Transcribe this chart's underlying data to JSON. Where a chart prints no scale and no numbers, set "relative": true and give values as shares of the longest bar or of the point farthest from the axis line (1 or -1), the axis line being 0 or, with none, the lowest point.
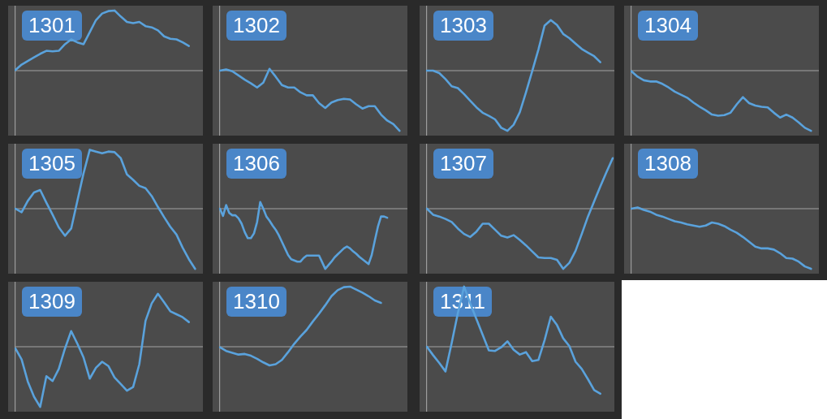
{
  "chart_data": [
    {
      "type": "line",
      "title": "1301",
      "relative": true,
      "marker": "none",
      "categories": [
        null,
        null,
        null,
        null,
        null,
        null,
        null,
        null,
        null,
        null,
        null,
        null,
        null,
        null,
        null,
        null,
        null,
        null,
        null,
        null,
        null,
        null,
        null,
        null,
        null,
        null,
        null,
        null,
        null,
        null,
        null
      ],
      "color": "#5aa2dc",
      "values": [
        0.01,
        0.1,
        0.16,
        0.22,
        0.28,
        0.33,
        0.32,
        0.33,
        0.44,
        0.52,
        0.47,
        0.44,
        0.64,
        0.84,
        0.95,
        0.99,
        1,
        0.9,
        0.81,
        0.79,
        0.81,
        0.74,
        0.72,
        0.67,
        0.57,
        0.53,
        0.52,
        0.47,
        0.41,
        null,
        null
      ],
      "ref_lines": [
        {
          "axis": "y",
          "value": 0,
          "color": "#a3a3a3"
        }
      ]
    },
    {
      "type": "line",
      "title": "1302",
      "relative": true,
      "marker": "none",
      "categories": [
        null,
        null,
        null,
        null,
        null,
        null,
        null,
        null,
        null,
        null,
        null,
        null,
        null,
        null,
        null,
        null,
        null,
        null,
        null,
        null,
        null,
        null,
        null,
        null,
        null,
        null,
        null,
        null,
        null,
        null,
        null
      ],
      "color": "#5aa2dc",
      "values": [
        0,
        0.02,
        -0.01,
        -0.08,
        -0.15,
        -0.21,
        -0.28,
        -0.2,
        0.03,
        -0.1,
        -0.24,
        -0.28,
        -0.28,
        -0.36,
        -0.41,
        -0.41,
        -0.54,
        -0.62,
        -0.53,
        -0.49,
        -0.47,
        -0.48,
        -0.56,
        -0.63,
        -0.59,
        -0.59,
        -0.73,
        -0.83,
        -0.89,
        -1,
        null
      ],
      "ref_lines": [
        {
          "axis": "y",
          "value": 0,
          "color": "#a3a3a3"
        }
      ]
    },
    {
      "type": "line",
      "title": "1303",
      "relative": true,
      "marker": "none",
      "categories": [
        null,
        null,
        null,
        null,
        null,
        null,
        null,
        null,
        null,
        null,
        null,
        null,
        null,
        null,
        null,
        null,
        null,
        null,
        null,
        null,
        null,
        null,
        null,
        null,
        null,
        null,
        null,
        null,
        null,
        null,
        null
      ],
      "color": "#5aa2dc",
      "values": [
        0,
        0,
        -0.04,
        -0.14,
        -0.26,
        -0.29,
        -0.39,
        -0.5,
        -0.61,
        -0.7,
        -0.75,
        -0.81,
        -0.95,
        -1,
        -0.9,
        -0.69,
        -0.36,
        -0.01,
        0.35,
        0.75,
        0.84,
        0.76,
        0.61,
        0.54,
        0.45,
        0.36,
        0.3,
        0.24,
        0.14,
        null,
        null
      ],
      "ref_lines": [
        {
          "axis": "y",
          "value": 0,
          "color": "#a3a3a3"
        }
      ]
    },
    {
      "type": "line",
      "title": "1304",
      "relative": true,
      "marker": "none",
      "categories": [
        null,
        null,
        null,
        null,
        null,
        null,
        null,
        null,
        null,
        null,
        null,
        null,
        null,
        null,
        null,
        null,
        null,
        null,
        null,
        null,
        null,
        null,
        null,
        null,
        null,
        null,
        null,
        null,
        null,
        null,
        null
      ],
      "color": "#5aa2dc",
      "values": [
        -0.01,
        -0.1,
        -0.16,
        -0.18,
        -0.18,
        -0.22,
        -0.28,
        -0.35,
        -0.4,
        -0.45,
        -0.53,
        -0.6,
        -0.66,
        -0.73,
        -0.75,
        -0.74,
        -0.7,
        -0.56,
        -0.44,
        -0.54,
        -0.58,
        -0.6,
        -0.61,
        -0.7,
        -0.78,
        -0.73,
        -0.78,
        -0.86,
        -0.95,
        -1,
        null
      ],
      "ref_lines": [
        {
          "axis": "y",
          "value": 0,
          "color": "#a3a3a3"
        }
      ]
    },
    {
      "type": "line",
      "title": "1305",
      "relative": true,
      "marker": "none",
      "categories": [
        null,
        null,
        null,
        null,
        null,
        null,
        null,
        null,
        null,
        null,
        null,
        null,
        null,
        null,
        null,
        null,
        null,
        null,
        null,
        null,
        null,
        null,
        null,
        null,
        null,
        null,
        null,
        null,
        null,
        null,
        null
      ],
      "color": "#5aa2dc",
      "values": [
        0,
        -0.06,
        0.13,
        0.27,
        0.31,
        0.1,
        -0.1,
        -0.31,
        -0.45,
        -0.33,
        0.13,
        0.59,
        0.98,
        0.95,
        0.92,
        0.95,
        0.94,
        0.84,
        0.57,
        0.48,
        0.38,
        0.34,
        0.21,
        0.03,
        -0.14,
        -0.3,
        -0.43,
        -0.65,
        -0.84,
        -1,
        null
      ],
      "ref_lines": [
        {
          "axis": "y",
          "value": 0,
          "color": "#a3a3a3"
        }
      ]
    },
    {
      "type": "line",
      "title": "1306",
      "relative": true,
      "marker": "none",
      "categories": [
        null,
        null,
        null,
        null,
        null,
        null,
        null,
        null,
        null,
        null,
        null,
        null,
        null,
        null,
        null,
        null,
        null,
        null,
        null,
        null,
        null,
        null,
        null,
        null,
        null,
        null,
        null,
        null,
        null,
        null,
        null,
        null,
        null,
        null,
        null,
        null,
        null,
        null,
        null,
        null,
        null,
        null,
        null,
        null,
        null,
        null,
        null,
        null,
        null,
        null,
        null,
        null,
        null,
        null,
        null,
        null,
        null,
        null,
        null,
        null,
        null
      ],
      "color": "#5aa2dc",
      "values": [
        0,
        -0.12,
        0.06,
        -0.07,
        -0.11,
        -0.11,
        -0.16,
        -0.25,
        -0.39,
        -0.49,
        -0.49,
        -0.41,
        -0.22,
        0.11,
        0.0,
        -0.13,
        -0.2,
        -0.28,
        -0.35,
        -0.44,
        -0.55,
        -0.66,
        -0.77,
        -0.84,
        -0.86,
        -0.88,
        -0.88,
        -0.82,
        -0.78,
        -0.78,
        -0.78,
        -0.78,
        -0.78,
        -0.89,
        -1,
        -0.94,
        -0.88,
        -0.81,
        -0.76,
        -0.71,
        -0.66,
        -0.63,
        -0.66,
        -0.71,
        -0.75,
        -0.8,
        -0.84,
        -0.88,
        -0.92,
        -0.77,
        -0.53,
        -0.3,
        -0.13,
        -0.13,
        -0.15,
        null,
        null,
        null,
        null,
        null,
        null
      ],
      "ref_lines": [
        {
          "axis": "y",
          "value": 0,
          "color": "#a3a3a3"
        }
      ]
    },
    {
      "type": "line",
      "title": "1307",
      "relative": true,
      "marker": "none",
      "categories": [
        null,
        null,
        null,
        null,
        null,
        null,
        null,
        null,
        null,
        null,
        null,
        null,
        null,
        null,
        null,
        null,
        null,
        null,
        null,
        null,
        null,
        null,
        null,
        null,
        null,
        null,
        null,
        null,
        null,
        null,
        null
      ],
      "color": "#5aa2dc",
      "values": [
        0,
        -0.1,
        -0.13,
        -0.17,
        -0.22,
        -0.33,
        -0.42,
        -0.47,
        -0.38,
        -0.25,
        -0.25,
        -0.35,
        -0.45,
        -0.48,
        -0.44,
        -0.52,
        -0.61,
        -0.71,
        -0.81,
        -0.82,
        -0.82,
        -0.85,
        -1,
        -0.9,
        -0.7,
        -0.42,
        -0.13,
        0.12,
        0.37,
        0.61,
        0.84
      ],
      "ref_lines": [
        {
          "axis": "y",
          "value": 0,
          "color": "#a3a3a3"
        }
      ]
    },
    {
      "type": "line",
      "title": "1308",
      "relative": true,
      "marker": "none",
      "categories": [
        null,
        null,
        null,
        null,
        null,
        null,
        null,
        null,
        null,
        null,
        null,
        null,
        null,
        null,
        null,
        null,
        null,
        null,
        null,
        null,
        null,
        null,
        null,
        null,
        null,
        null,
        null,
        null,
        null,
        null,
        null
      ],
      "color": "#5aa2dc",
      "values": [
        0,
        0.02,
        -0.02,
        -0.05,
        -0.1,
        -0.13,
        -0.17,
        -0.21,
        -0.23,
        -0.26,
        -0.28,
        -0.3,
        -0.28,
        -0.23,
        -0.25,
        -0.29,
        -0.35,
        -0.4,
        -0.47,
        -0.55,
        -0.63,
        -0.66,
        -0.66,
        -0.68,
        -0.74,
        -0.82,
        -0.83,
        -0.88,
        -0.96,
        -1,
        null
      ],
      "ref_lines": [
        {
          "axis": "y",
          "value": 0,
          "color": "#a3a3a3"
        }
      ]
    },
    {
      "type": "line",
      "title": "1309",
      "relative": true,
      "marker": "none",
      "categories": [
        null,
        null,
        null,
        null,
        null,
        null,
        null,
        null,
        null,
        null,
        null,
        null,
        null,
        null,
        null,
        null,
        null,
        null,
        null,
        null,
        null,
        null,
        null,
        null,
        null,
        null,
        null,
        null,
        null,
        null,
        null
      ],
      "color": "#5aa2dc",
      "values": [
        -0.03,
        -0.21,
        -0.58,
        -0.83,
        -1,
        -0.49,
        -0.57,
        -0.37,
        -0.03,
        0.26,
        0.05,
        -0.18,
        -0.53,
        -0.35,
        -0.25,
        -0.32,
        -0.51,
        -0.62,
        -0.73,
        -0.67,
        -0.29,
        0.43,
        0.72,
        0.88,
        0.74,
        0.59,
        0.54,
        0.49,
        0.41,
        null,
        null
      ],
      "ref_lines": [
        {
          "axis": "y",
          "value": 0,
          "color": "#a3a3a3"
        }
      ]
    },
    {
      "type": "line",
      "title": "1310",
      "relative": true,
      "marker": "none",
      "categories": [
        null,
        null,
        null,
        null,
        null,
        null,
        null,
        null,
        null,
        null,
        null,
        null,
        null,
        null,
        null,
        null,
        null,
        null,
        null,
        null,
        null,
        null,
        null,
        null,
        null,
        null,
        null,
        null,
        null,
        null,
        null
      ],
      "color": "#5aa2dc",
      "values": [
        -0.01,
        -0.07,
        -0.1,
        -0.13,
        -0.12,
        -0.15,
        -0.2,
        -0.26,
        -0.31,
        -0.29,
        -0.22,
        -0.09,
        0.05,
        0.17,
        0.28,
        0.42,
        0.55,
        0.69,
        0.84,
        0.94,
        0.99,
        1,
        0.95,
        0.9,
        0.84,
        0.77,
        0.73,
        null,
        null,
        null,
        null
      ],
      "ref_lines": [
        {
          "axis": "y",
          "value": 0,
          "color": "#a3a3a3"
        }
      ]
    },
    {
      "type": "line",
      "title": "1311",
      "relative": true,
      "marker": "none",
      "categories": [
        null,
        null,
        null,
        null,
        null,
        null,
        null,
        null,
        null,
        null,
        null,
        null,
        null,
        null,
        null,
        null,
        null,
        null,
        null,
        null,
        null,
        null,
        null,
        null,
        null,
        null,
        null,
        null,
        null,
        null,
        null
      ],
      "color": "#5aa2dc",
      "values": [
        0,
        -0.14,
        -0.27,
        -0.41,
        0.06,
        0.56,
        1,
        0.72,
        0.46,
        0.2,
        -0.06,
        -0.07,
        -0.01,
        0.09,
        -0.05,
        -0.13,
        -0.09,
        -0.24,
        -0.22,
        0.11,
        0.5,
        0.36,
        0.14,
        0.01,
        -0.25,
        -0.37,
        -0.54,
        -0.72,
        -0.78,
        null,
        null
      ],
      "ref_lines": [
        {
          "axis": "y",
          "value": 0,
          "color": "#a3a3a3"
        }
      ]
    }
  ]
}
